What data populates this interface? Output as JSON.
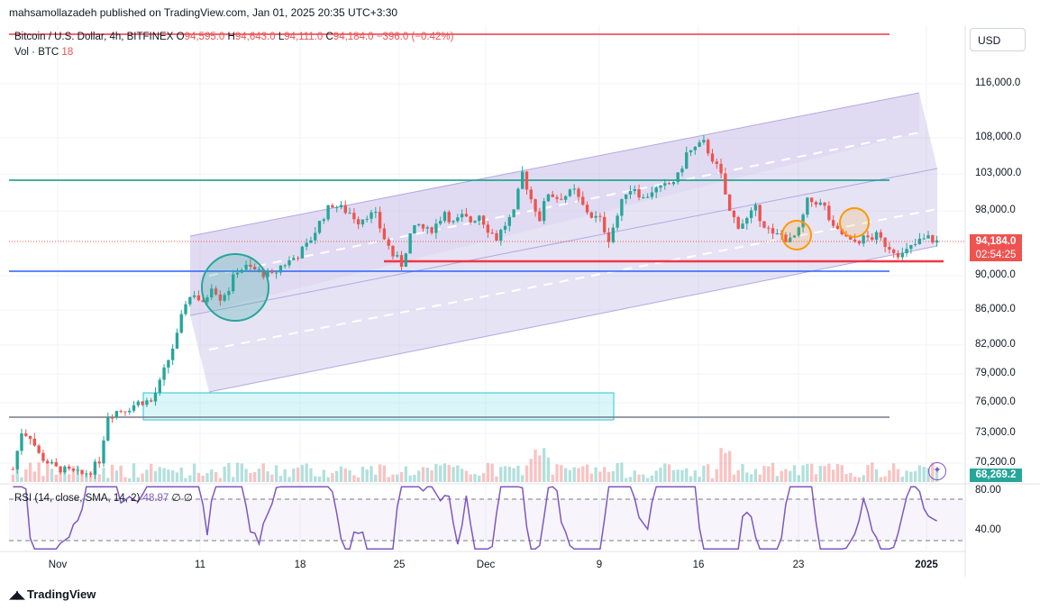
{
  "header": {
    "published": "mahsamollazadeh published on TradingView.com, Jan 01, 2025 20:35 UTC+3:30"
  },
  "legend": {
    "symbol": "Bitcoin / U.S. Dollar, 4h, BITFINEX",
    "open_label": "O",
    "open": "94,595.0",
    "high_label": "H",
    "high": "94,643.0",
    "low_label": "L",
    "low": "94,111.0",
    "close_label": "C",
    "close": "94,184.0",
    "change": "−396.0 (−0.42%)"
  },
  "volume_legend": {
    "label": "Vol · BTC",
    "value": "18"
  },
  "rsi_legend": {
    "label": "RSI (14, close, SMA, 14, 2)",
    "value": "48.97",
    "extra": "∅ ∅"
  },
  "currency_button": "USD",
  "price_axis": [
    "116,000.0",
    "108,000.0",
    "103,000.0",
    "98,000.0",
    "90,000.0",
    "86,000.0",
    "82,000.0",
    "79,000.0",
    "76,000.0",
    "73,000.0",
    "70,200.0"
  ],
  "rsi_axis": [
    "80.00",
    "40.00"
  ],
  "time_axis": [
    "Nov",
    "11",
    "18",
    "25",
    "Dec",
    "9",
    "16",
    "23",
    "2025"
  ],
  "badges": {
    "last_price": "94,184.0",
    "countdown": "02:54:25",
    "volume_value": "68,269.2"
  },
  "colors": {
    "up": "#26a69a",
    "down": "#ef5350",
    "channel": "#b2a8e0",
    "rsi": "#7e57c2",
    "blue_line": "#2962ff",
    "teal_line": "#089981",
    "red_line": "#f23645"
  },
  "brand": "TradingView",
  "chart_data": {
    "type": "candlestick",
    "title": "Bitcoin / U.S. Dollar, 4h, BITFINEX",
    "ylabel": "USD",
    "ylim": [
      68000,
      120000
    ],
    "x_categories": [
      "Nov",
      "11",
      "18",
      "25",
      "Dec",
      "9",
      "16",
      "23",
      "2025"
    ],
    "price_path": [
      [
        0,
        69500
      ],
      [
        2,
        73200
      ],
      [
        4,
        72800
      ],
      [
        6,
        71000
      ],
      [
        8,
        70300
      ],
      [
        10,
        69600
      ],
      [
        12,
        69400
      ],
      [
        14,
        69100
      ],
      [
        16,
        68900
      ],
      [
        18,
        69300
      ],
      [
        20,
        70500
      ],
      [
        22,
        74800
      ],
      [
        24,
        75200
      ],
      [
        26,
        75400
      ],
      [
        28,
        75800
      ],
      [
        30,
        76200
      ],
      [
        32,
        76100
      ],
      [
        34,
        78000
      ],
      [
        36,
        80500
      ],
      [
        38,
        83000
      ],
      [
        40,
        87000
      ],
      [
        42,
        88000
      ],
      [
        44,
        86500
      ],
      [
        46,
        89000
      ],
      [
        48,
        87500
      ],
      [
        50,
        88500
      ],
      [
        52,
        90800
      ],
      [
        54,
        91000
      ],
      [
        56,
        90700
      ],
      [
        58,
        90300
      ],
      [
        60,
        89900
      ],
      [
        62,
        91200
      ],
      [
        64,
        91800
      ],
      [
        66,
        92600
      ],
      [
        68,
        93600
      ],
      [
        70,
        95500
      ],
      [
        72,
        97500
      ],
      [
        74,
        98900
      ],
      [
        76,
        98300
      ],
      [
        78,
        97800
      ],
      [
        80,
        96800
      ],
      [
        82,
        97600
      ],
      [
        84,
        97300
      ],
      [
        86,
        94600
      ],
      [
        88,
        92500
      ],
      [
        90,
        91400
      ],
      [
        92,
        95000
      ],
      [
        94,
        96200
      ],
      [
        96,
        95400
      ],
      [
        98,
        96300
      ],
      [
        100,
        98000
      ],
      [
        102,
        96400
      ],
      [
        104,
        97200
      ],
      [
        106,
        96700
      ],
      [
        108,
        97600
      ],
      [
        110,
        95800
      ],
      [
        112,
        94600
      ],
      [
        114,
        96300
      ],
      [
        116,
        97600
      ],
      [
        118,
        103100
      ],
      [
        120,
        99600
      ],
      [
        122,
        97100
      ],
      [
        124,
        100500
      ],
      [
        126,
        99800
      ],
      [
        128,
        100100
      ],
      [
        130,
        100600
      ],
      [
        132,
        98600
      ],
      [
        134,
        97400
      ],
      [
        136,
        96800
      ],
      [
        138,
        94600
      ],
      [
        140,
        97400
      ],
      [
        142,
        100700
      ],
      [
        144,
        101200
      ],
      [
        146,
        99600
      ],
      [
        148,
        100800
      ],
      [
        150,
        100900
      ],
      [
        152,
        101600
      ],
      [
        154,
        102600
      ],
      [
        156,
        105800
      ],
      [
        158,
        106500
      ],
      [
        160,
        107200
      ],
      [
        162,
        105200
      ],
      [
        164,
        102600
      ],
      [
        166,
        97800
      ],
      [
        168,
        96300
      ],
      [
        170,
        96900
      ],
      [
        172,
        98200
      ],
      [
        174,
        96400
      ],
      [
        176,
        94800
      ],
      [
        178,
        95000
      ],
      [
        180,
        94200
      ],
      [
        182,
        95400
      ],
      [
        184,
        99200
      ],
      [
        186,
        99300
      ],
      [
        188,
        98400
      ],
      [
        190,
        95600
      ],
      [
        192,
        95100
      ],
      [
        194,
        94000
      ],
      [
        196,
        94400
      ],
      [
        198,
        94600
      ],
      [
        200,
        94800
      ],
      [
        202,
        93900
      ],
      [
        204,
        93200
      ],
      [
        206,
        92500
      ],
      [
        208,
        93400
      ],
      [
        210,
        94200
      ],
      [
        212,
        94600
      ],
      [
        214,
        94184
      ]
    ],
    "horizontal_levels": [
      {
        "color": "#f23645",
        "value": 119200
      },
      {
        "color": "#089981",
        "value": 102300
      },
      {
        "color": "#f23645",
        "value": 91800
      },
      {
        "color": "#2962ff",
        "value": 90600
      },
      {
        "color": "#787b86",
        "value": 74600
      }
    ],
    "rsi_levels": [
      70,
      30
    ],
    "rsi_last": 48.97
  }
}
